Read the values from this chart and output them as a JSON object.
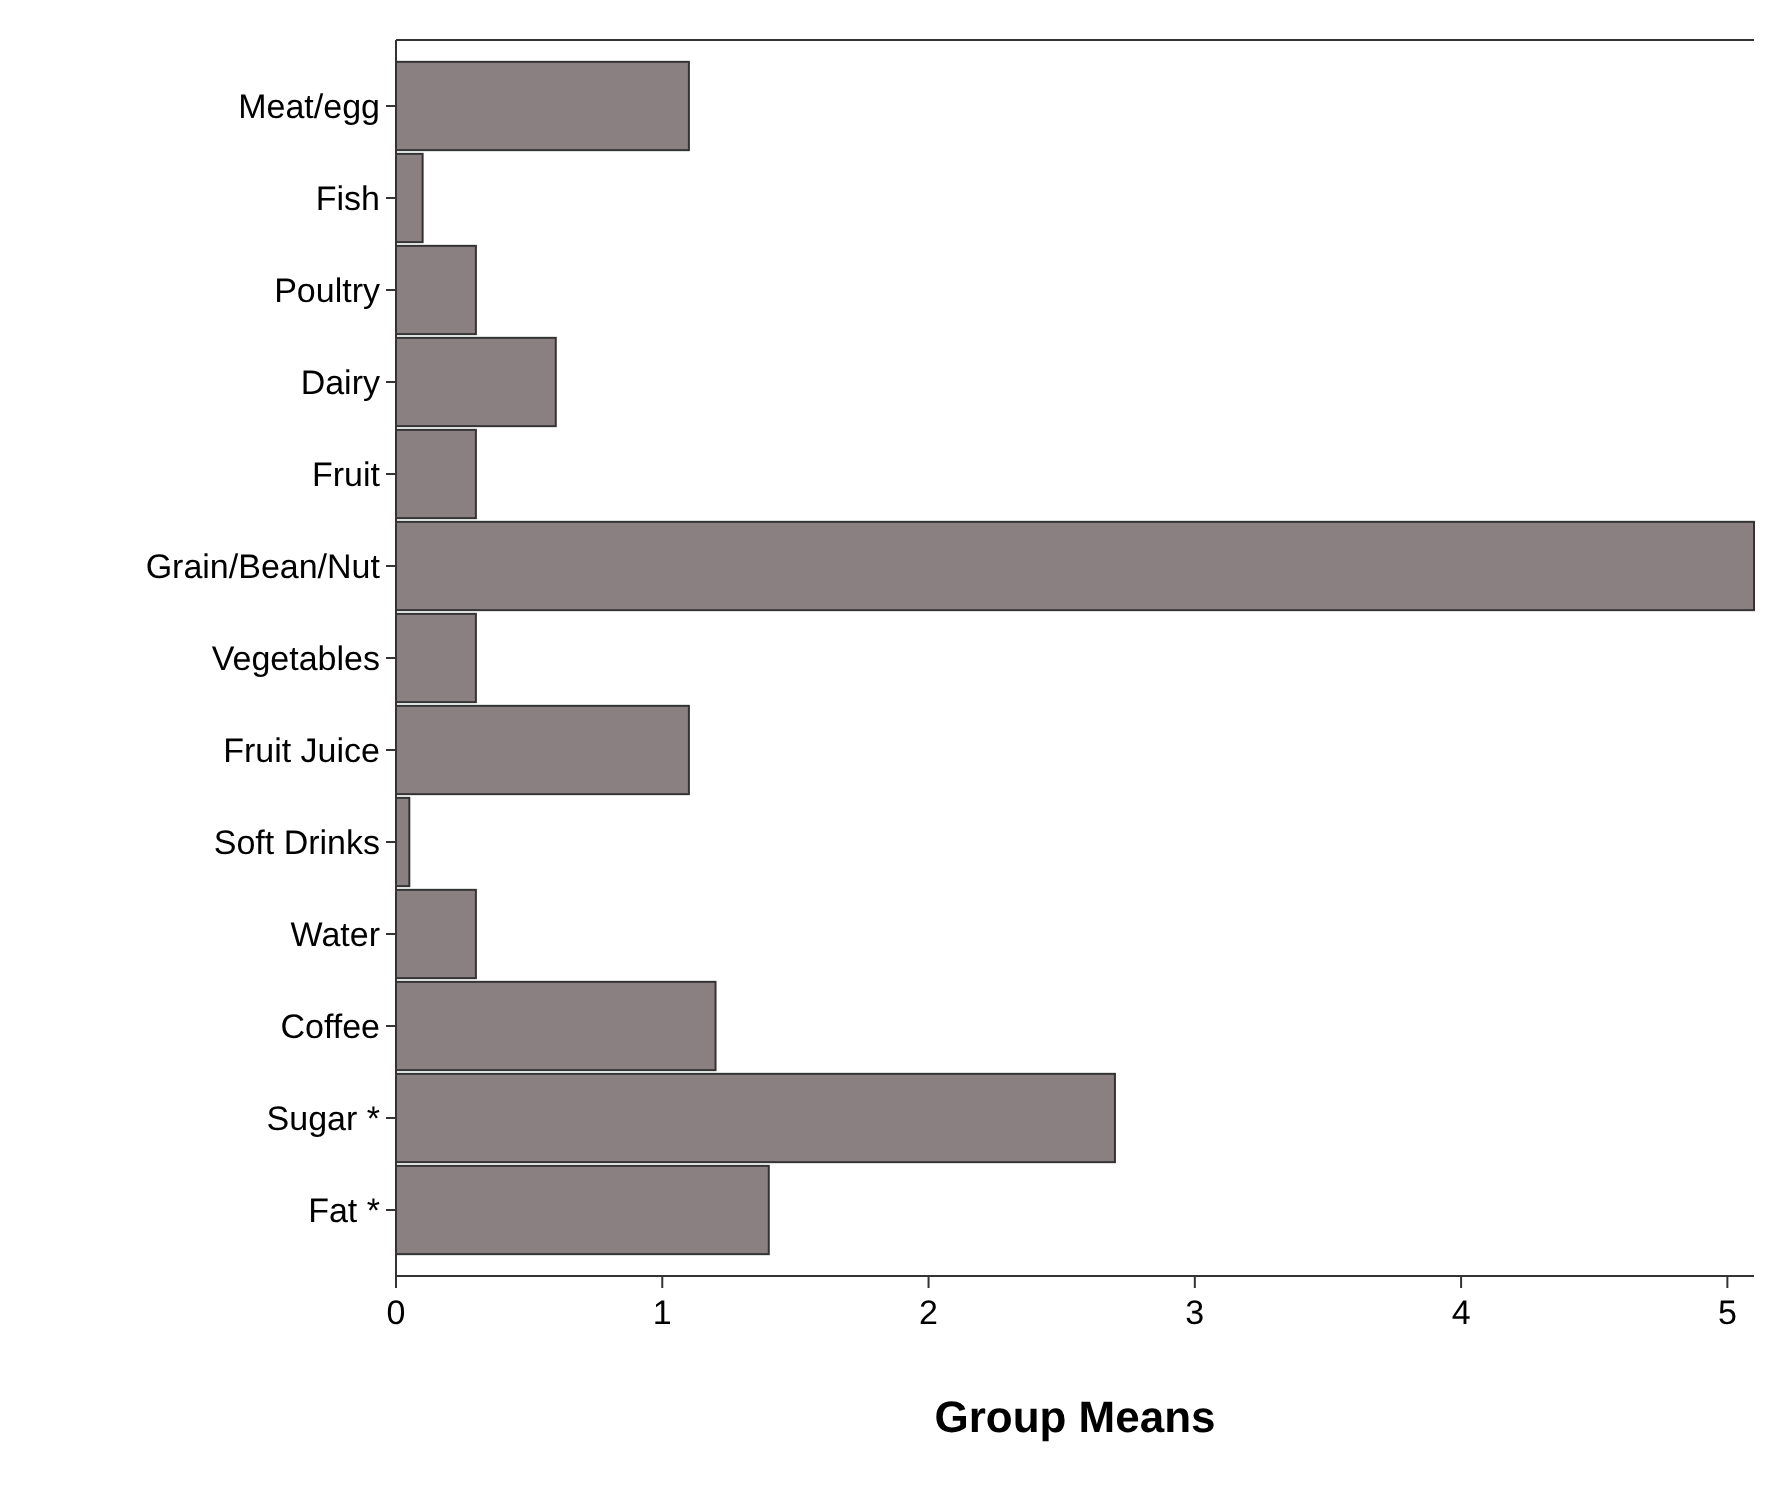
{
  "chart_data": {
    "type": "bar",
    "orientation": "horizontal",
    "xlabel": "Group Means",
    "categories": [
      "Meat/egg",
      "Fish",
      "Poultry",
      "Dairy",
      "Fruit",
      "Grain/Bean/Nut",
      "Vegetables",
      "Fruit Juice",
      "Soft Drinks",
      "Water",
      "Coffee",
      "Sugar *",
      "Fat *"
    ],
    "values": [
      1.1,
      0.1,
      0.3,
      0.6,
      0.3,
      5.1,
      0.3,
      1.1,
      0.05,
      0.3,
      1.2,
      2.7,
      1.4
    ],
    "color": "#8a8082",
    "xlim": [
      0,
      5.1
    ],
    "xticks": [
      0,
      1,
      2,
      3,
      4,
      5
    ],
    "grid": false
  }
}
